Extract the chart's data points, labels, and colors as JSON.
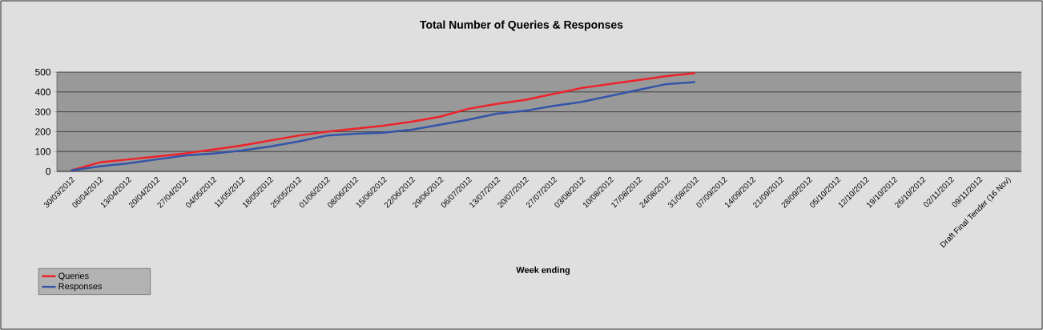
{
  "chart_data": {
    "type": "line",
    "title": "Total Number of Queries & Responses",
    "xlabel": "Week ending",
    "categories": [
      "30/03/2012",
      "06/04/2012",
      "13/04/2012",
      "20/04/2012",
      "27/04/2012",
      "04/05/2012",
      "11/05/2012",
      "18/05/2012",
      "25/05/2012",
      "01/06/2012",
      "08/06/2012",
      "15/06/2012",
      "22/06/2012",
      "29/06/2012",
      "06/07/2012",
      "13/07/2012",
      "20/07/2012",
      "27/07/2012",
      "03/08/2012",
      "10/08/2012",
      "17/08/2012",
      "24/08/2012",
      "31/08/2012",
      "07/09/2012",
      "14/09/2012",
      "21/09/2012",
      "28/09/2012",
      "05/10/2012",
      "12/10/2012",
      "19/10/2012",
      "26/10/2012",
      "02/11/2012",
      "09/11/2012",
      "Draft Final Tender (16 Nov)"
    ],
    "series": [
      {
        "name": "Queries",
        "color": "#ee2229",
        "values": [
          5,
          45,
          60,
          75,
          90,
          110,
          130,
          155,
          180,
          200,
          215,
          230,
          250,
          275,
          315,
          340,
          360,
          390,
          420,
          440,
          460,
          480,
          495,
          null,
          null,
          null,
          null,
          null,
          null,
          null,
          null,
          null,
          null,
          null
        ]
      },
      {
        "name": "Responses",
        "color": "#3354a8",
        "values": [
          5,
          25,
          40,
          60,
          80,
          90,
          105,
          125,
          150,
          180,
          190,
          195,
          210,
          235,
          260,
          290,
          305,
          330,
          350,
          380,
          410,
          440,
          450,
          null,
          null,
          null,
          null,
          null,
          null,
          null,
          null,
          null,
          null,
          null
        ]
      }
    ],
    "ylim": [
      0,
      500
    ],
    "yticks": [
      0,
      100,
      200,
      300,
      400,
      500
    ],
    "grid": "y",
    "legend": "bottom left",
    "marker": "none",
    "line_style": "solid"
  }
}
